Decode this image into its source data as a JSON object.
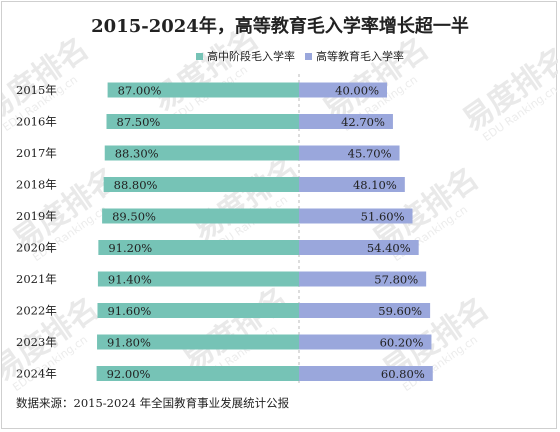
{
  "colors": {
    "left_series": "#76c3b6",
    "right_series": "#9aa7dc",
    "text": "#222222",
    "watermark": "#e9e9e9",
    "border": "#cfcfcf"
  },
  "watermark": {
    "text": "易度排名",
    "sub": "EDU Ranking.cn"
  },
  "chart_data": {
    "type": "bar",
    "orientation": "horizontal-butterfly",
    "title": "2015-2024年，高等教育毛入学率增长超一半",
    "categories": [
      "2015年",
      "2016年",
      "2017年",
      "2018年",
      "2019年",
      "2020年",
      "2021年",
      "2022年",
      "2023年",
      "2024年"
    ],
    "series": [
      {
        "name": "高中阶段毛入学率",
        "side": "left",
        "values": [
          87.0,
          87.5,
          88.3,
          88.8,
          89.5,
          91.2,
          91.4,
          91.6,
          91.8,
          92.0
        ],
        "labels": [
          "87.00%",
          "87.50%",
          "88.30%",
          "88.80%",
          "89.50%",
          "91.20%",
          "91.40%",
          "91.60%",
          "91.80%",
          "92.00%"
        ]
      },
      {
        "name": "高等教育毛入学率",
        "side": "right",
        "values": [
          40.0,
          42.7,
          45.7,
          48.1,
          51.6,
          54.4,
          57.8,
          59.6,
          60.2,
          60.8
        ],
        "labels": [
          "40.00%",
          "42.70%",
          "45.70%",
          "48.10%",
          "51.60%",
          "54.40%",
          "57.80%",
          "59.60%",
          "60.20%",
          "60.80%"
        ]
      }
    ],
    "legend_position": "top",
    "grid": false
  },
  "source": "数据来源：2015-2024 年全国教育事业发展统计公报"
}
